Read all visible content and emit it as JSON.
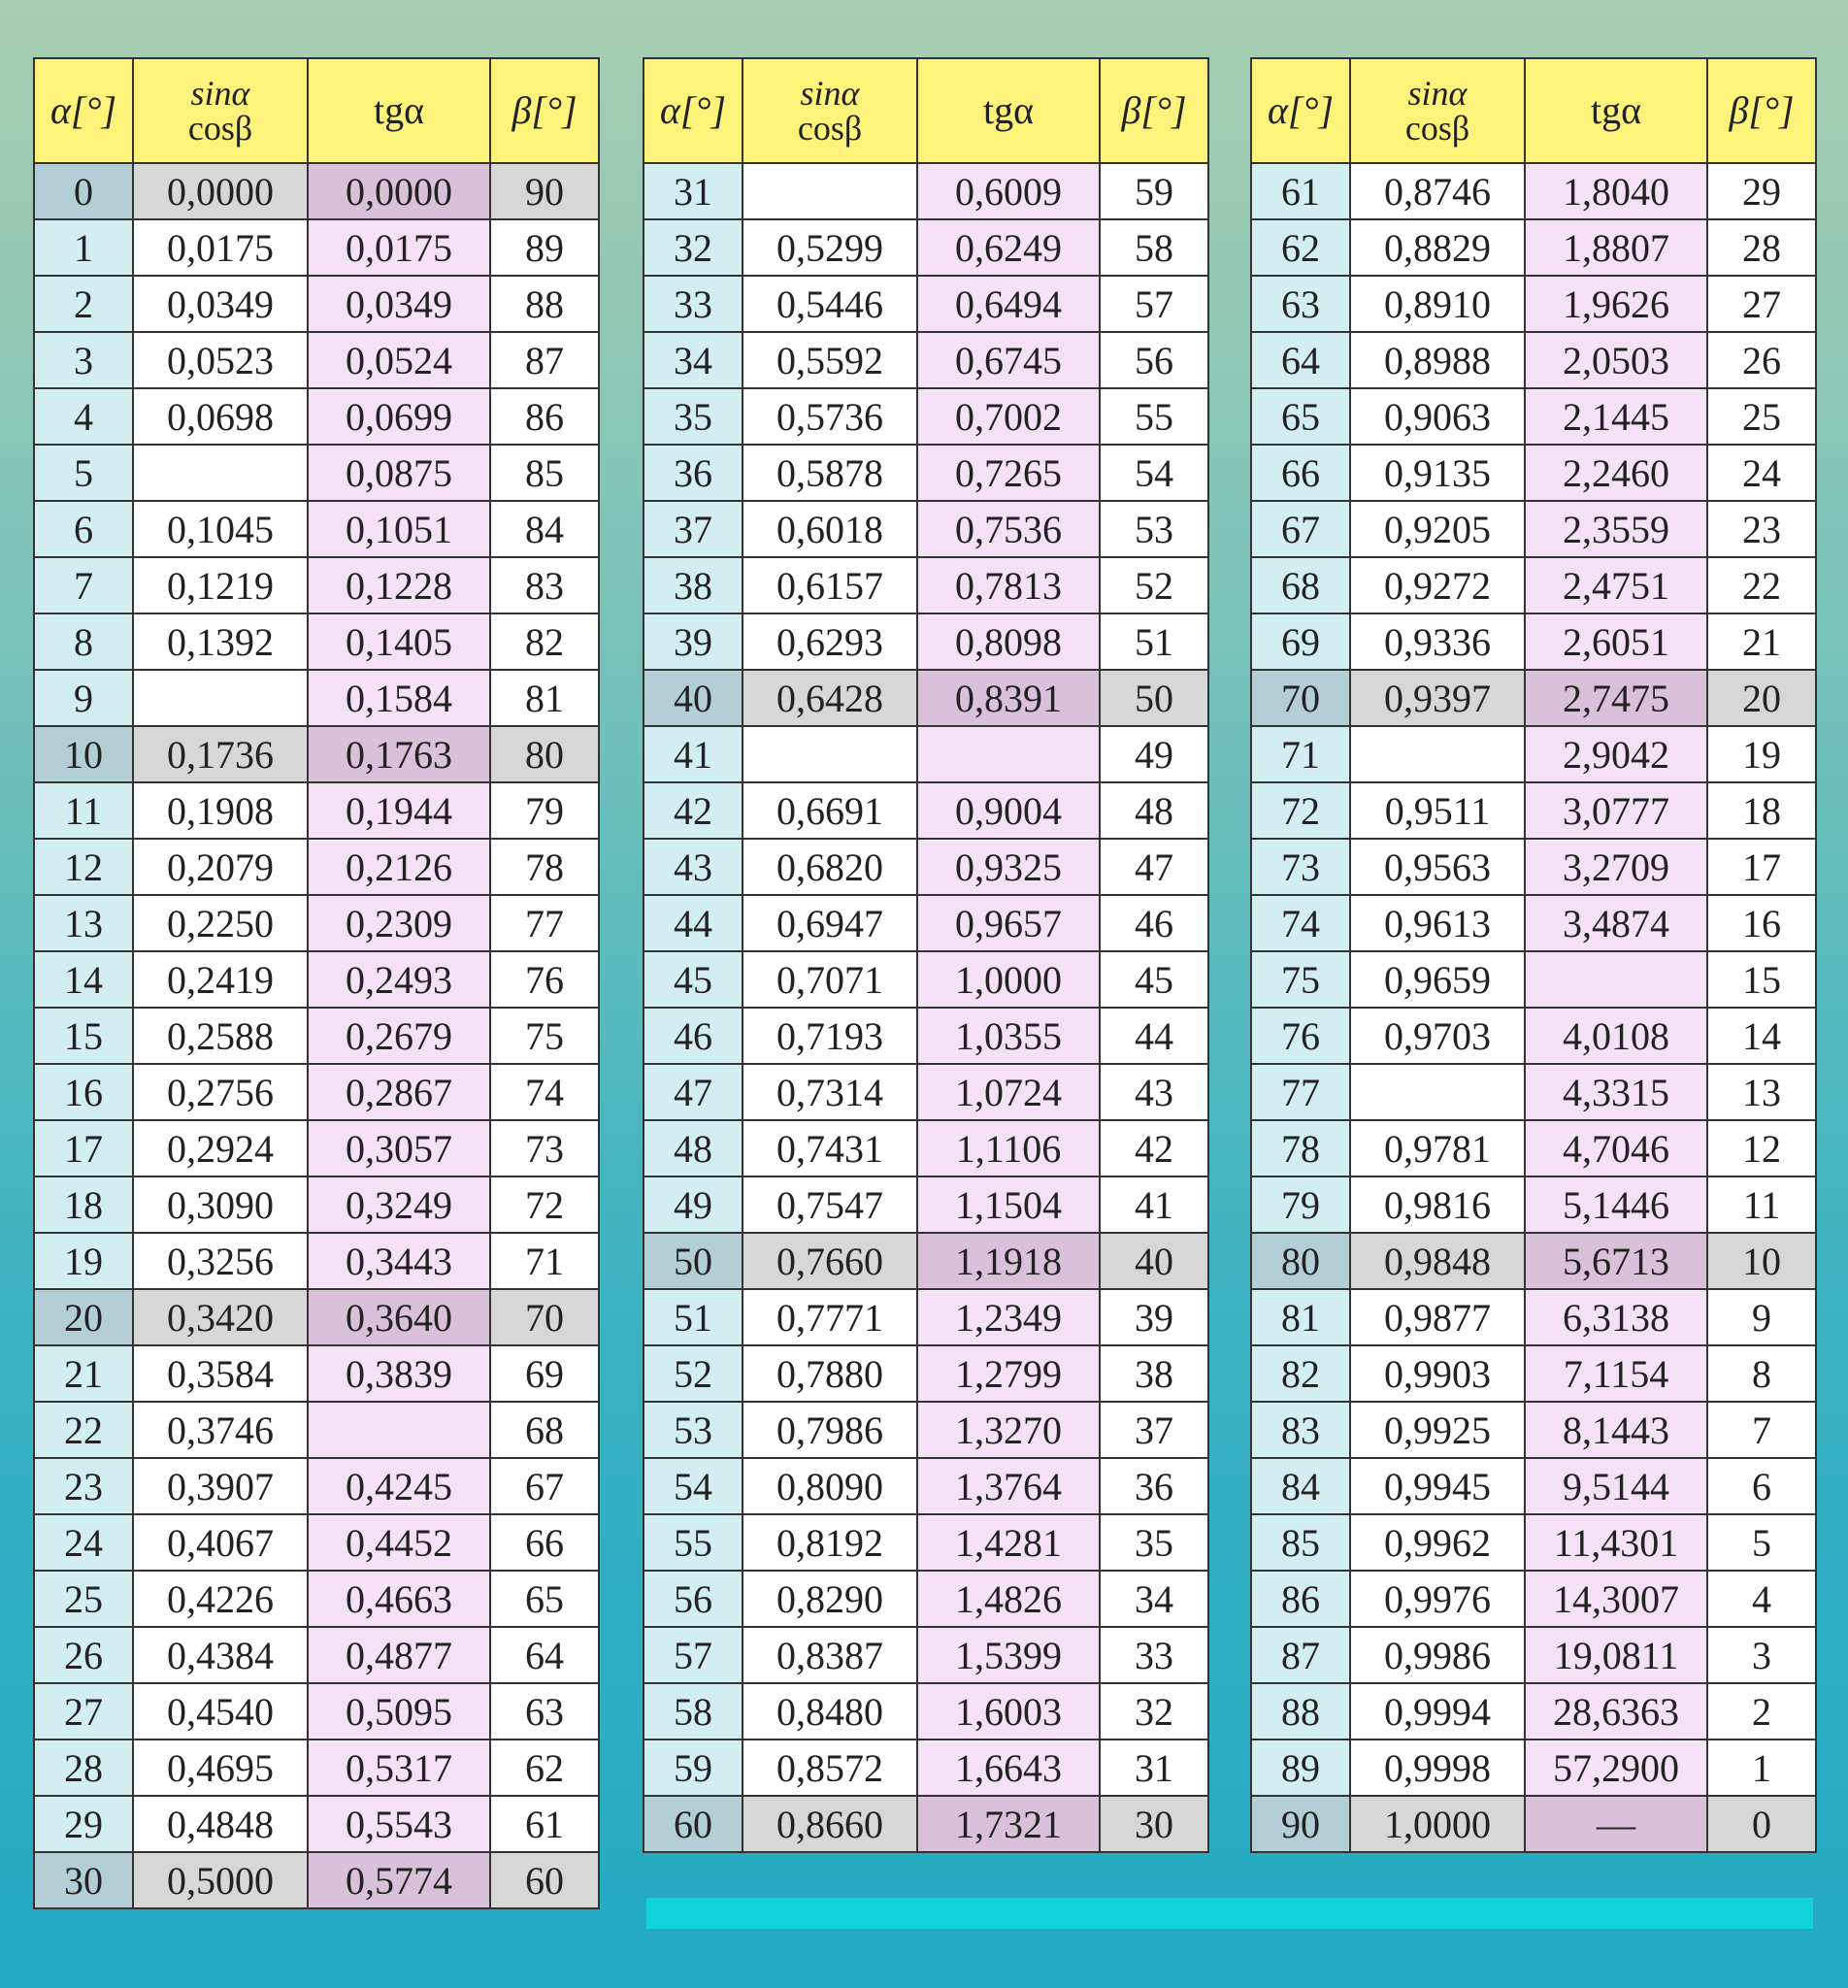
{
  "header": {
    "alpha": "α[°]",
    "sin": "sinα",
    "cos": "cosβ",
    "tg": "tgα",
    "beta": "β[°]"
  },
  "tables": [
    {
      "rows": [
        [
          "0",
          "0,0000",
          "0,0000",
          "90"
        ],
        [
          "1",
          "0,0175",
          "0,0175",
          "89"
        ],
        [
          "2",
          "0,0349",
          "0,0349",
          "88"
        ],
        [
          "3",
          "0,0523",
          "0,0524",
          "87"
        ],
        [
          "4",
          "0,0698",
          "0,0699",
          "86"
        ],
        [
          "5",
          null,
          "0,0875",
          "85"
        ],
        [
          "6",
          "0,1045",
          "0,1051",
          "84"
        ],
        [
          "7",
          "0,1219",
          "0,1228",
          "83"
        ],
        [
          "8",
          "0,1392",
          "0,1405",
          "82"
        ],
        [
          "9",
          null,
          "0,1584",
          "81"
        ],
        [
          "10",
          "0,1736",
          "0,1763",
          "80"
        ],
        [
          "11",
          "0,1908",
          "0,1944",
          "79"
        ],
        [
          "12",
          "0,2079",
          "0,2126",
          "78"
        ],
        [
          "13",
          "0,2250",
          "0,2309",
          "77"
        ],
        [
          "14",
          "0,2419",
          "0,2493",
          "76"
        ],
        [
          "15",
          "0,2588",
          "0,2679",
          "75"
        ],
        [
          "16",
          "0,2756",
          "0,2867",
          "74"
        ],
        [
          "17",
          "0,2924",
          "0,3057",
          "73"
        ],
        [
          "18",
          "0,3090",
          "0,3249",
          "72"
        ],
        [
          "19",
          "0,3256",
          "0,3443",
          "71"
        ],
        [
          "20",
          "0,3420",
          "0,3640",
          "70"
        ],
        [
          "21",
          "0,3584",
          "0,3839",
          "69"
        ],
        [
          "22",
          "0,3746",
          null,
          "68"
        ],
        [
          "23",
          "0,3907",
          "0,4245",
          "67"
        ],
        [
          "24",
          "0,4067",
          "0,4452",
          "66"
        ],
        [
          "25",
          "0,4226",
          "0,4663",
          "65"
        ],
        [
          "26",
          "0,4384",
          "0,4877",
          "64"
        ],
        [
          "27",
          "0,4540",
          "0,5095",
          "63"
        ],
        [
          "28",
          "0,4695",
          "0,5317",
          "62"
        ],
        [
          "29",
          "0,4848",
          "0,5543",
          "61"
        ],
        [
          "30",
          "0,5000",
          "0,5774",
          "60"
        ]
      ]
    },
    {
      "rows": [
        [
          "31",
          null,
          "0,6009",
          "59"
        ],
        [
          "32",
          "0,5299",
          "0,6249",
          "58"
        ],
        [
          "33",
          "0,5446",
          "0,6494",
          "57"
        ],
        [
          "34",
          "0,5592",
          "0,6745",
          "56"
        ],
        [
          "35",
          "0,5736",
          "0,7002",
          "55"
        ],
        [
          "36",
          "0,5878",
          "0,7265",
          "54"
        ],
        [
          "37",
          "0,6018",
          "0,7536",
          "53"
        ],
        [
          "38",
          "0,6157",
          "0,7813",
          "52"
        ],
        [
          "39",
          "0,6293",
          "0,8098",
          "51"
        ],
        [
          "40",
          "0,6428",
          "0,8391",
          "50"
        ],
        [
          "41",
          null,
          null,
          "49"
        ],
        [
          "42",
          "0,6691",
          "0,9004",
          "48"
        ],
        [
          "43",
          "0,6820",
          "0,9325",
          "47"
        ],
        [
          "44",
          "0,6947",
          "0,9657",
          "46"
        ],
        [
          "45",
          "0,7071",
          "1,0000",
          "45"
        ],
        [
          "46",
          "0,7193",
          "1,0355",
          "44"
        ],
        [
          "47",
          "0,7314",
          "1,0724",
          "43"
        ],
        [
          "48",
          "0,7431",
          "1,1106",
          "42"
        ],
        [
          "49",
          "0,7547",
          "1,1504",
          "41"
        ],
        [
          "50",
          "0,7660",
          "1,1918",
          "40"
        ],
        [
          "51",
          "0,7771",
          "1,2349",
          "39"
        ],
        [
          "52",
          "0,7880",
          "1,2799",
          "38"
        ],
        [
          "53",
          "0,7986",
          "1,3270",
          "37"
        ],
        [
          "54",
          "0,8090",
          "1,3764",
          "36"
        ],
        [
          "55",
          "0,8192",
          "1,4281",
          "35"
        ],
        [
          "56",
          "0,8290",
          "1,4826",
          "34"
        ],
        [
          "57",
          "0,8387",
          "1,5399",
          "33"
        ],
        [
          "58",
          "0,8480",
          "1,6003",
          "32"
        ],
        [
          "59",
          "0,8572",
          "1,6643",
          "31"
        ],
        [
          "60",
          "0,8660",
          "1,7321",
          "30"
        ]
      ]
    },
    {
      "rows": [
        [
          "61",
          "0,8746",
          "1,8040",
          "29"
        ],
        [
          "62",
          "0,8829",
          "1,8807",
          "28"
        ],
        [
          "63",
          "0,8910",
          "1,9626",
          "27"
        ],
        [
          "64",
          "0,8988",
          "2,0503",
          "26"
        ],
        [
          "65",
          "0,9063",
          "2,1445",
          "25"
        ],
        [
          "66",
          "0,9135",
          "2,2460",
          "24"
        ],
        [
          "67",
          "0,9205",
          "2,3559",
          "23"
        ],
        [
          "68",
          "0,9272",
          "2,4751",
          "22"
        ],
        [
          "69",
          "0,9336",
          "2,6051",
          "21"
        ],
        [
          "70",
          "0,9397",
          "2,7475",
          "20"
        ],
        [
          "71",
          null,
          "2,9042",
          "19"
        ],
        [
          "72",
          "0,9511",
          "3,0777",
          "18"
        ],
        [
          "73",
          "0,9563",
          "3,2709",
          "17"
        ],
        [
          "74",
          "0,9613",
          "3,4874",
          "16"
        ],
        [
          "75",
          "0,9659",
          null,
          "15"
        ],
        [
          "76",
          "0,9703",
          "4,0108",
          "14"
        ],
        [
          "77",
          null,
          "4,3315",
          "13"
        ],
        [
          "78",
          "0,9781",
          "4,7046",
          "12"
        ],
        [
          "79",
          "0,9816",
          "5,1446",
          "11"
        ],
        [
          "80",
          "0,9848",
          "5,6713",
          "10"
        ],
        [
          "81",
          "0,9877",
          "6,3138",
          "9"
        ],
        [
          "82",
          "0,9903",
          "7,1154",
          "8"
        ],
        [
          "83",
          "0,9925",
          "8,1443",
          "7"
        ],
        [
          "84",
          "0,9945",
          "9,5144",
          "6"
        ],
        [
          "85",
          "0,9962",
          "11,4301",
          "5"
        ],
        [
          "86",
          "0,9976",
          "14,3007",
          "4"
        ],
        [
          "87",
          "0,9986",
          "19,0811",
          "3"
        ],
        [
          "88",
          "0,9994",
          "28,6363",
          "2"
        ],
        [
          "89",
          "0,9998",
          "57,2900",
          "1"
        ],
        [
          "90",
          "1,0000",
          "—",
          "0"
        ]
      ]
    }
  ]
}
